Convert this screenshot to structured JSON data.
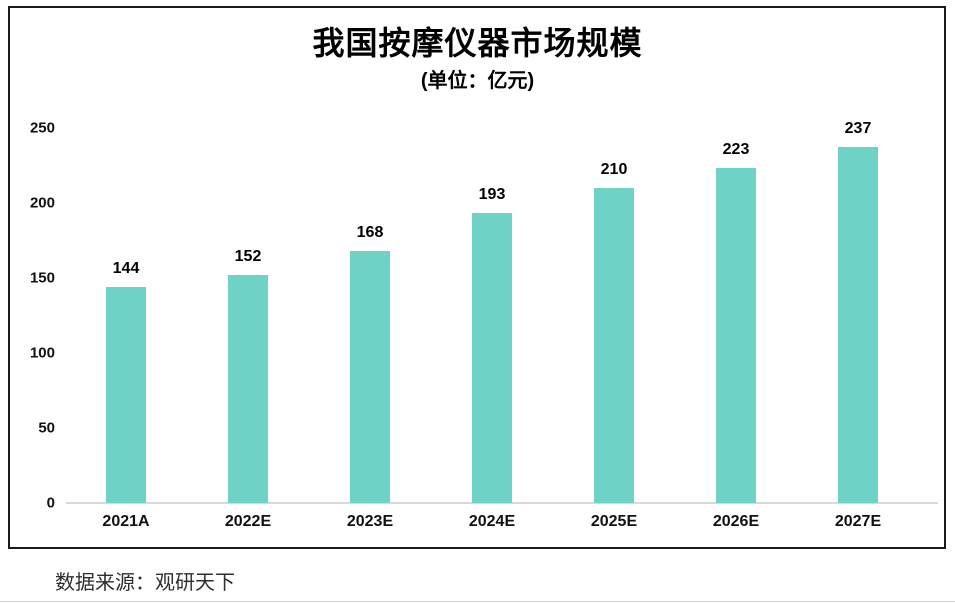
{
  "title": "我国按摩仪器市场规模",
  "subtitle": "(单位：亿元)",
  "source_note": "数据来源：观研天下",
  "colors": {
    "bar": "#6FD2C7",
    "axis_line": "#D9D9D9",
    "frame_border": "#1A1A1A",
    "label_text": "#000000",
    "source_text": "#2E2E2E"
  },
  "chart_data": {
    "type": "bar",
    "title": "我国按摩仪器市场规模",
    "subtitle": "(单位：亿元)",
    "categories": [
      "2021A",
      "2022E",
      "2023E",
      "2024E",
      "2025E",
      "2026E",
      "2027E"
    ],
    "values": [
      144,
      152,
      168,
      193,
      210,
      223,
      237
    ],
    "xlabel": "",
    "ylabel": "",
    "ylim": [
      0,
      250
    ],
    "yticks": [
      0,
      50,
      100,
      150,
      200,
      250
    ],
    "grid": false,
    "legend": false,
    "data_labels": true,
    "bar_color": "#6FD2C7"
  }
}
